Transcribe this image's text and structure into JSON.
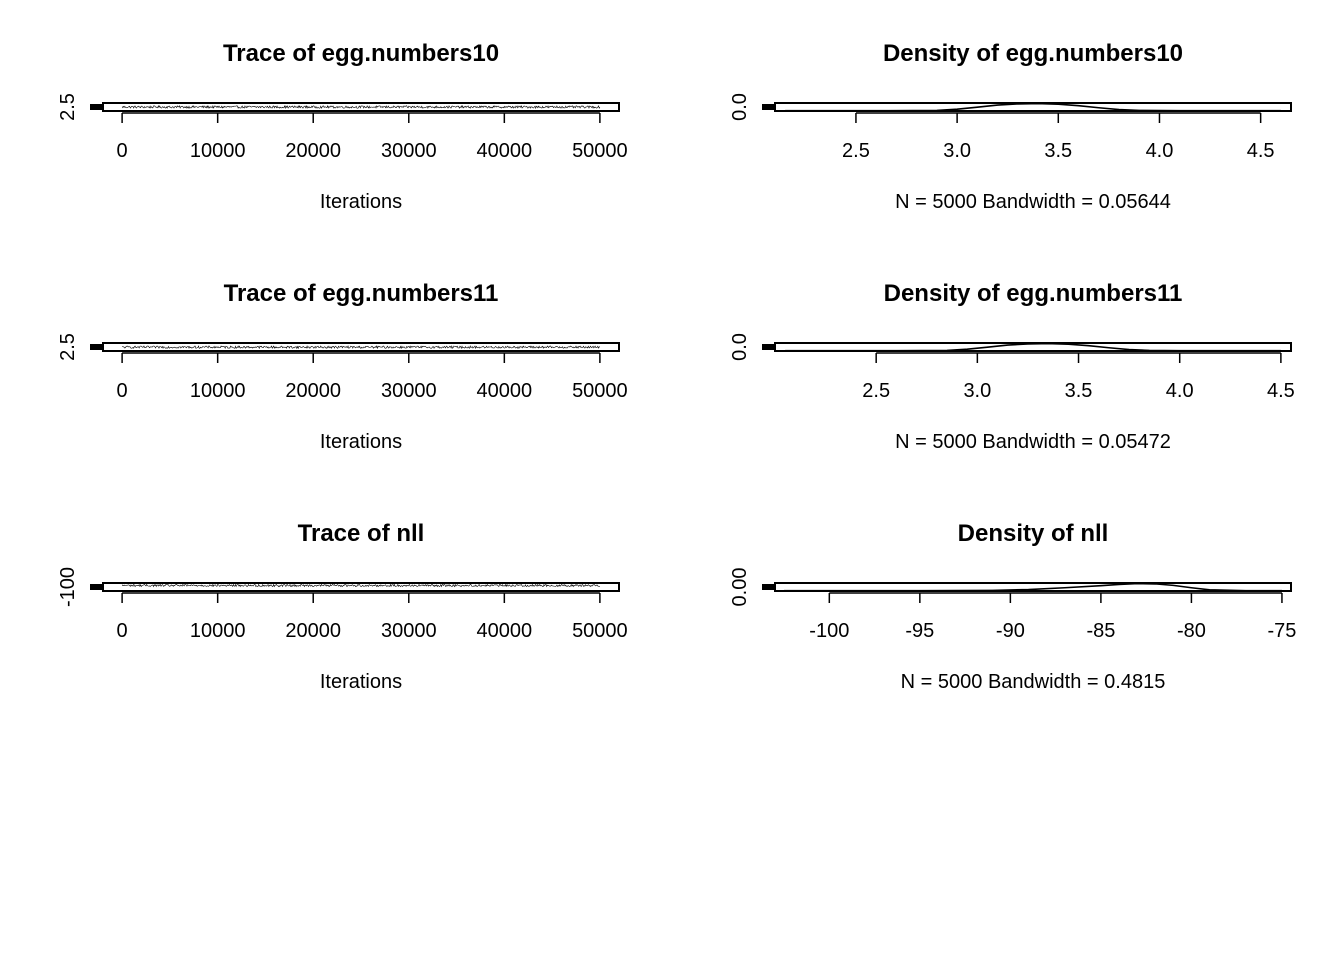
{
  "chart_data": [
    {
      "type": "line",
      "panel": "trace",
      "title": "Trace of egg.numbers10",
      "xlabel": "Iterations",
      "ylabel": "",
      "xticks": [
        0,
        10000,
        20000,
        30000,
        40000,
        50000
      ],
      "xtick_labels": [
        "0",
        "10000",
        "20000",
        "30000",
        "40000",
        "50000"
      ],
      "xlim": [
        -2000,
        52000
      ],
      "yticks": [
        2.5
      ],
      "ytick_labels": [
        "2.5"
      ],
      "ylim": [
        2.2,
        4.6
      ],
      "series": [
        {
          "x_start": 0,
          "x_end": 50000,
          "n": 5000,
          "y_center": 3.4,
          "y_spread": 0.35
        }
      ]
    },
    {
      "type": "line",
      "panel": "density",
      "title": "Density of egg.numbers10",
      "xlabel": "N = 5000   Bandwidth = 0.05644",
      "ylabel": "",
      "xticks": [
        2.5,
        3.0,
        3.5,
        4.0,
        4.5
      ],
      "xtick_labels": [
        "2.5",
        "3.0",
        "3.5",
        "4.0",
        "4.5"
      ],
      "xlim": [
        2.1,
        4.65
      ],
      "yticks": [
        0.0
      ],
      "ytick_labels": [
        "0.0"
      ],
      "ylim": [
        -0.05,
        1.3
      ],
      "series": [
        {
          "x": [
            2.15,
            2.6,
            2.9,
            3.0,
            3.1,
            3.2,
            3.3,
            3.4,
            3.5,
            3.6,
            3.7,
            3.8,
            3.9,
            4.1,
            4.6
          ],
          "y": [
            0,
            0,
            0.05,
            0.25,
            0.6,
            0.95,
            1.15,
            1.2,
            1.1,
            0.85,
            0.5,
            0.2,
            0.05,
            0,
            0
          ]
        }
      ]
    },
    {
      "type": "line",
      "panel": "trace",
      "title": "Trace of egg.numbers11",
      "xlabel": "Iterations",
      "ylabel": "",
      "xticks": [
        0,
        10000,
        20000,
        30000,
        40000,
        50000
      ],
      "xtick_labels": [
        "0",
        "10000",
        "20000",
        "30000",
        "40000",
        "50000"
      ],
      "xlim": [
        -2000,
        52000
      ],
      "yticks": [
        2.5
      ],
      "ytick_labels": [
        "2.5"
      ],
      "ylim": [
        2.2,
        4.6
      ],
      "series": [
        {
          "x_start": 0,
          "x_end": 50000,
          "n": 5000,
          "y_center": 3.35,
          "y_spread": 0.35
        }
      ]
    },
    {
      "type": "line",
      "panel": "density",
      "title": "Density of egg.numbers11",
      "xlabel": "N = 5000   Bandwidth = 0.05472",
      "ylabel": "",
      "xticks": [
        2.5,
        3.0,
        3.5,
        4.0,
        4.5
      ],
      "xtick_labels": [
        "2.5",
        "3.0",
        "3.5",
        "4.0",
        "4.5"
      ],
      "xlim": [
        2.0,
        4.55
      ],
      "yticks": [
        0.0
      ],
      "ytick_labels": [
        "0.0"
      ],
      "ylim": [
        -0.05,
        1.3
      ],
      "series": [
        {
          "x": [
            2.05,
            2.6,
            2.85,
            2.95,
            3.05,
            3.15,
            3.25,
            3.35,
            3.45,
            3.55,
            3.65,
            3.75,
            3.85,
            4.0,
            4.5
          ],
          "y": [
            0,
            0,
            0.05,
            0.25,
            0.6,
            0.95,
            1.15,
            1.2,
            1.1,
            0.85,
            0.5,
            0.2,
            0.05,
            0,
            0
          ]
        }
      ]
    },
    {
      "type": "line",
      "panel": "trace",
      "title": "Trace of nll",
      "xlabel": "Iterations",
      "ylabel": "",
      "xticks": [
        0,
        10000,
        20000,
        30000,
        40000,
        50000
      ],
      "xtick_labels": [
        "0",
        "10000",
        "20000",
        "30000",
        "40000",
        "50000"
      ],
      "xlim": [
        -2000,
        52000
      ],
      "yticks": [
        -100
      ],
      "ytick_labels": [
        "-100"
      ],
      "ylim": [
        -103,
        -74
      ],
      "series": [
        {
          "x_start": 0,
          "x_end": 50000,
          "n": 5000,
          "y_center": -83,
          "y_spread": 4
        }
      ]
    },
    {
      "type": "line",
      "panel": "density",
      "title": "Density of nll",
      "xlabel": "N = 5000   Bandwidth = 0.4815",
      "ylabel": "",
      "xticks": [
        -100,
        -95,
        -90,
        -85,
        -80,
        -75
      ],
      "xtick_labels": [
        "-100",
        "-95",
        "-90",
        "-85",
        "-80",
        "-75"
      ],
      "xlim": [
        -103,
        -74.5
      ],
      "yticks": [
        0.0
      ],
      "ytick_labels": [
        "0.00"
      ],
      "ylim": [
        -0.005,
        0.13
      ],
      "series": [
        {
          "x": [
            -102.5,
            -95,
            -91,
            -89,
            -87,
            -85,
            -84,
            -83,
            -82,
            -81,
            -80,
            -79,
            -77,
            -75
          ],
          "y": [
            0,
            0,
            0.005,
            0.02,
            0.05,
            0.085,
            0.105,
            0.12,
            0.115,
            0.09,
            0.05,
            0.015,
            0,
            0
          ]
        }
      ]
    }
  ]
}
